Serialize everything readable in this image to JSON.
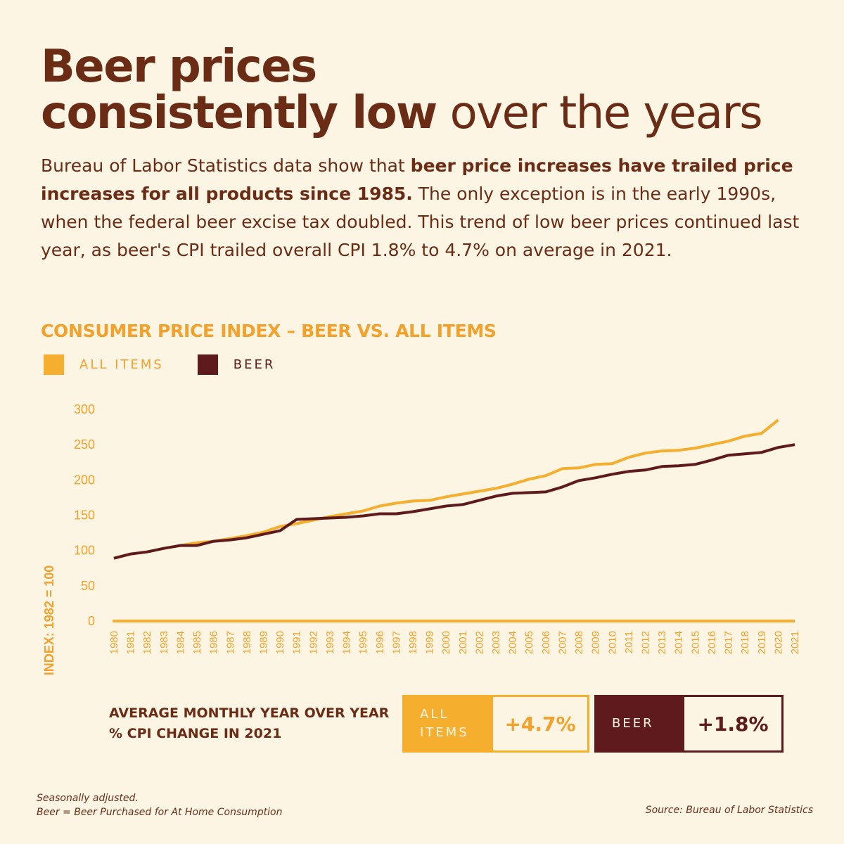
{
  "headline": {
    "line1_bold": "Beer prices",
    "line2_bold": "consistently low",
    "line2_light": " over the years"
  },
  "intro": {
    "part1": "Bureau of Labor Statistics data show that ",
    "bold": "beer price increases have trailed price increases for all products since 1985.",
    "part2": " The only exception is in the early 1990s, when the federal beer excise tax doubled. This trend of low beer prices continued last year, as beer's CPI trailed overall CPI 1.8% to 4.7% on average in 2021."
  },
  "colors": {
    "all_items": "#f5ae2e",
    "beer": "#5e1a1c",
    "title_accent": "#f3a12a",
    "text": "#6b2c16",
    "background": "#fdf5e4"
  },
  "chart_data": {
    "type": "line",
    "title": "CONSUMER PRICE INDEX – BEER VS. ALL ITEMS",
    "ylabel": "INDEX: 1982 = 100",
    "xlabel": "",
    "ylim": [
      0,
      300
    ],
    "yticks": [
      0,
      50,
      100,
      150,
      200,
      250,
      300
    ],
    "grid": false,
    "legend_position": "top-left",
    "x": [
      "1980",
      "1981",
      "1982",
      "1983",
      "1984",
      "1985",
      "1986",
      "1987",
      "1988",
      "1989",
      "1990",
      "1991",
      "1992",
      "1993",
      "1994",
      "1995",
      "1996",
      "1997",
      "1998",
      "1999",
      "2000",
      "2001",
      "2002",
      "2003",
      "2004",
      "2005",
      "2006",
      "2007",
      "2008",
      "2009",
      "2010",
      "2011",
      "2012",
      "2013",
      "2014",
      "2015",
      "2016",
      "2017",
      "2018",
      "2019",
      "2020",
      "2021"
    ],
    "series": [
      {
        "name": "ALL ITEMS",
        "key": "all_items",
        "values": [
          89,
          95,
          98,
          103,
          107,
          111,
          113,
          117,
          121,
          126,
          134,
          138,
          143,
          148,
          152,
          156,
          163,
          167,
          170,
          171,
          176,
          180,
          184,
          188,
          194,
          201,
          206,
          216,
          217,
          222,
          223,
          232,
          238,
          241,
          242,
          245,
          250,
          255,
          262,
          266,
          285,
          null
        ]
      },
      {
        "name": "BEER",
        "key": "beer",
        "values": [
          89,
          95,
          98,
          103,
          107,
          107,
          113,
          115,
          118,
          123,
          128,
          144,
          145,
          146,
          147,
          149,
          152,
          152,
          155,
          159,
          163,
          165,
          171,
          177,
          181,
          182,
          183,
          190,
          199,
          203,
          208,
          212,
          214,
          219,
          220,
          222,
          228,
          235,
          237,
          239,
          246,
          250
        ]
      }
    ]
  },
  "summary": {
    "label": "AVERAGE MONTHLY YEAR OVER YEAR % CPI CHANGE IN 2021",
    "all_items_tag": "ALL ITEMS",
    "all_items_value": "+4.7%",
    "beer_tag": "BEER",
    "beer_value": "+1.8%"
  },
  "footnotes": {
    "line1": "Seasonally adjusted.",
    "line2": "Beer = Beer Purchased for At Home Consumption",
    "source": "Source: Bureau of Labor Statistics"
  }
}
